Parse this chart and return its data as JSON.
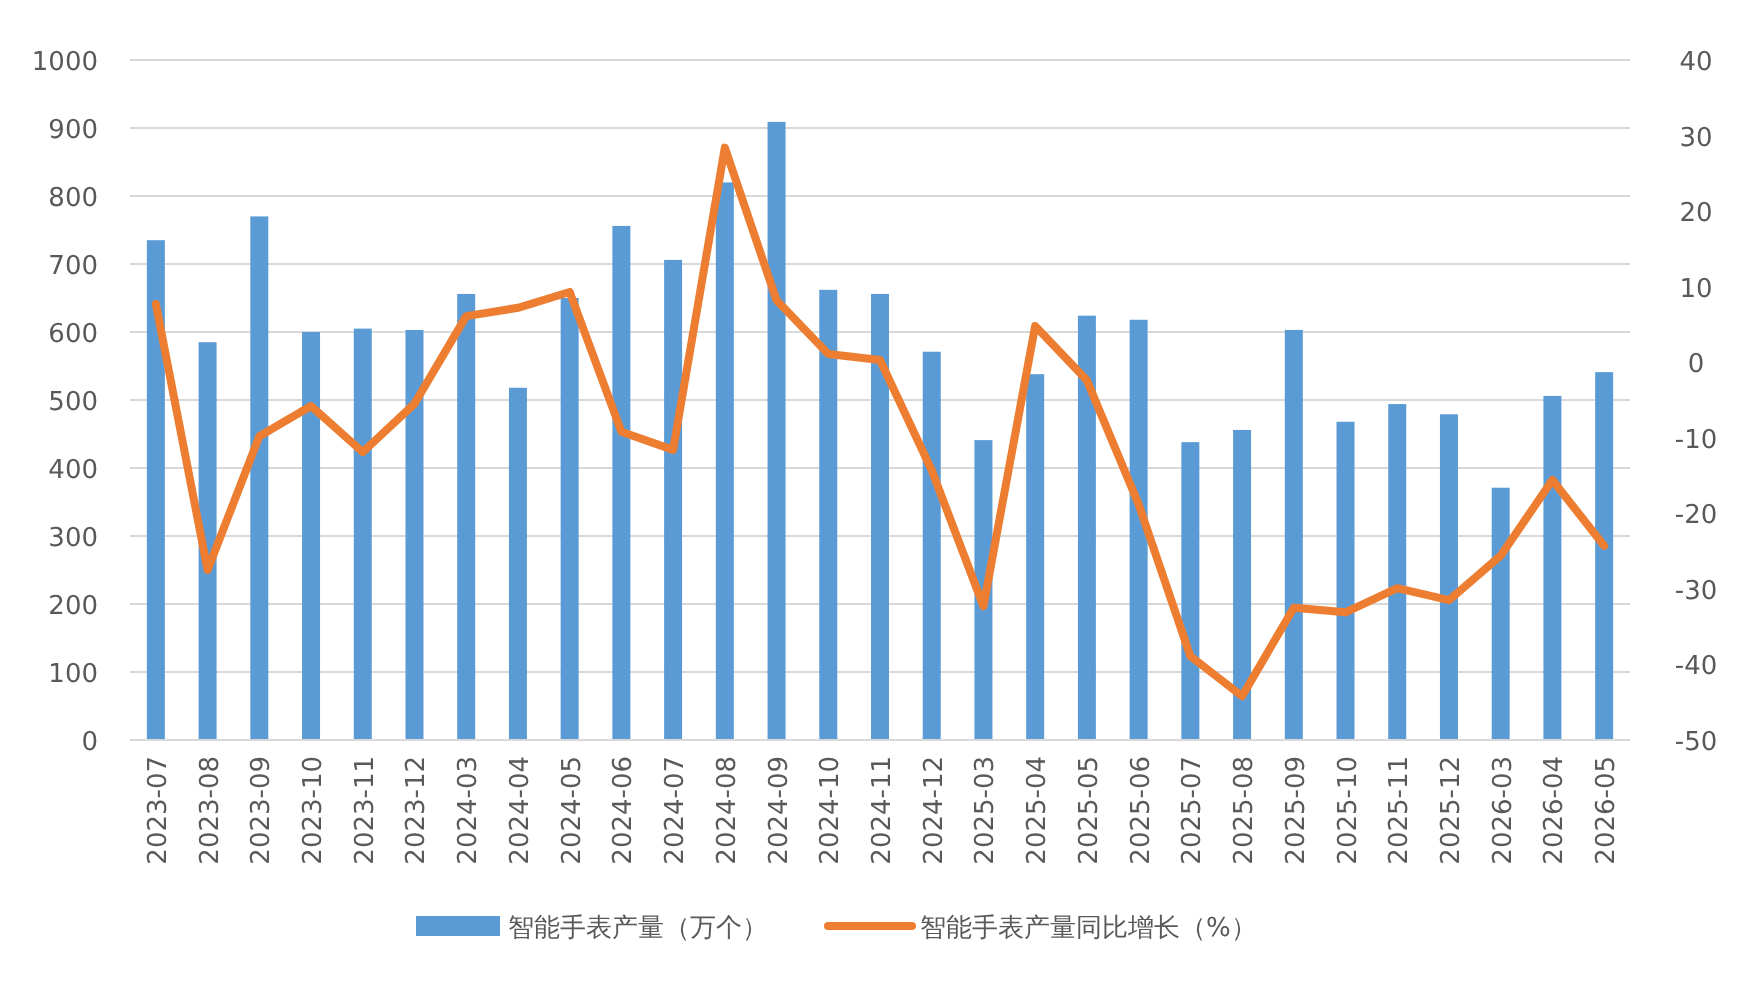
{
  "chart_data": {
    "type": "bar",
    "categories": [
      "2023-07",
      "2023-08",
      "2023-09",
      "2023-10",
      "2023-11",
      "2023-12",
      "2024-03",
      "2024-04",
      "2024-05",
      "2024-06",
      "2024-07",
      "2024-08",
      "2024-09",
      "2024-10",
      "2024-11",
      "2024-12",
      "2025-03",
      "2025-04",
      "2025-05",
      "2025-06",
      "2025-07",
      "2025-08",
      "2025-09",
      "2025-10",
      "2025-11",
      "2025-12",
      "2026-03",
      "2026-04",
      "2026-05"
    ],
    "series": [
      {
        "name": "智能手表产量（万个）",
        "color": "#5b9bd5",
        "values": [
          735,
          585,
          770,
          600,
          605,
          603,
          656,
          518,
          650,
          756,
          706,
          820,
          909,
          662,
          656,
          571,
          441,
          538,
          624,
          618,
          438,
          456,
          603,
          468,
          494,
          479,
          371,
          506,
          541
        ]
      },
      {
        "name": "智能手表产量同比增长（%）",
        "type": "line",
        "axis": "y2",
        "color": "#ed7d31",
        "values": [
          7.7,
          -27.5,
          -9.8,
          -5.8,
          -11.9,
          -5.5,
          6.1,
          7.2,
          9.3,
          -9.2,
          -11.6,
          28.4,
          8.2,
          1.1,
          0.3,
          -14.3,
          -32.3,
          4.8,
          -2.4,
          -18.8,
          -38.9,
          -44.2,
          -32.5,
          -33.1,
          -29.9,
          -31.5,
          -25.6,
          -15.6,
          -24.3
        ]
      }
    ],
    "ylim": [
      0,
      1000
    ],
    "yticks": [
      0,
      100,
      200,
      300,
      400,
      500,
      600,
      700,
      800,
      900,
      1000
    ],
    "y2lim": [
      -50,
      40
    ],
    "y2ticks": [
      -50,
      -40,
      -30,
      -20,
      -10,
      0,
      10,
      20,
      30,
      40
    ],
    "grid": "y",
    "legend": "bottom"
  }
}
